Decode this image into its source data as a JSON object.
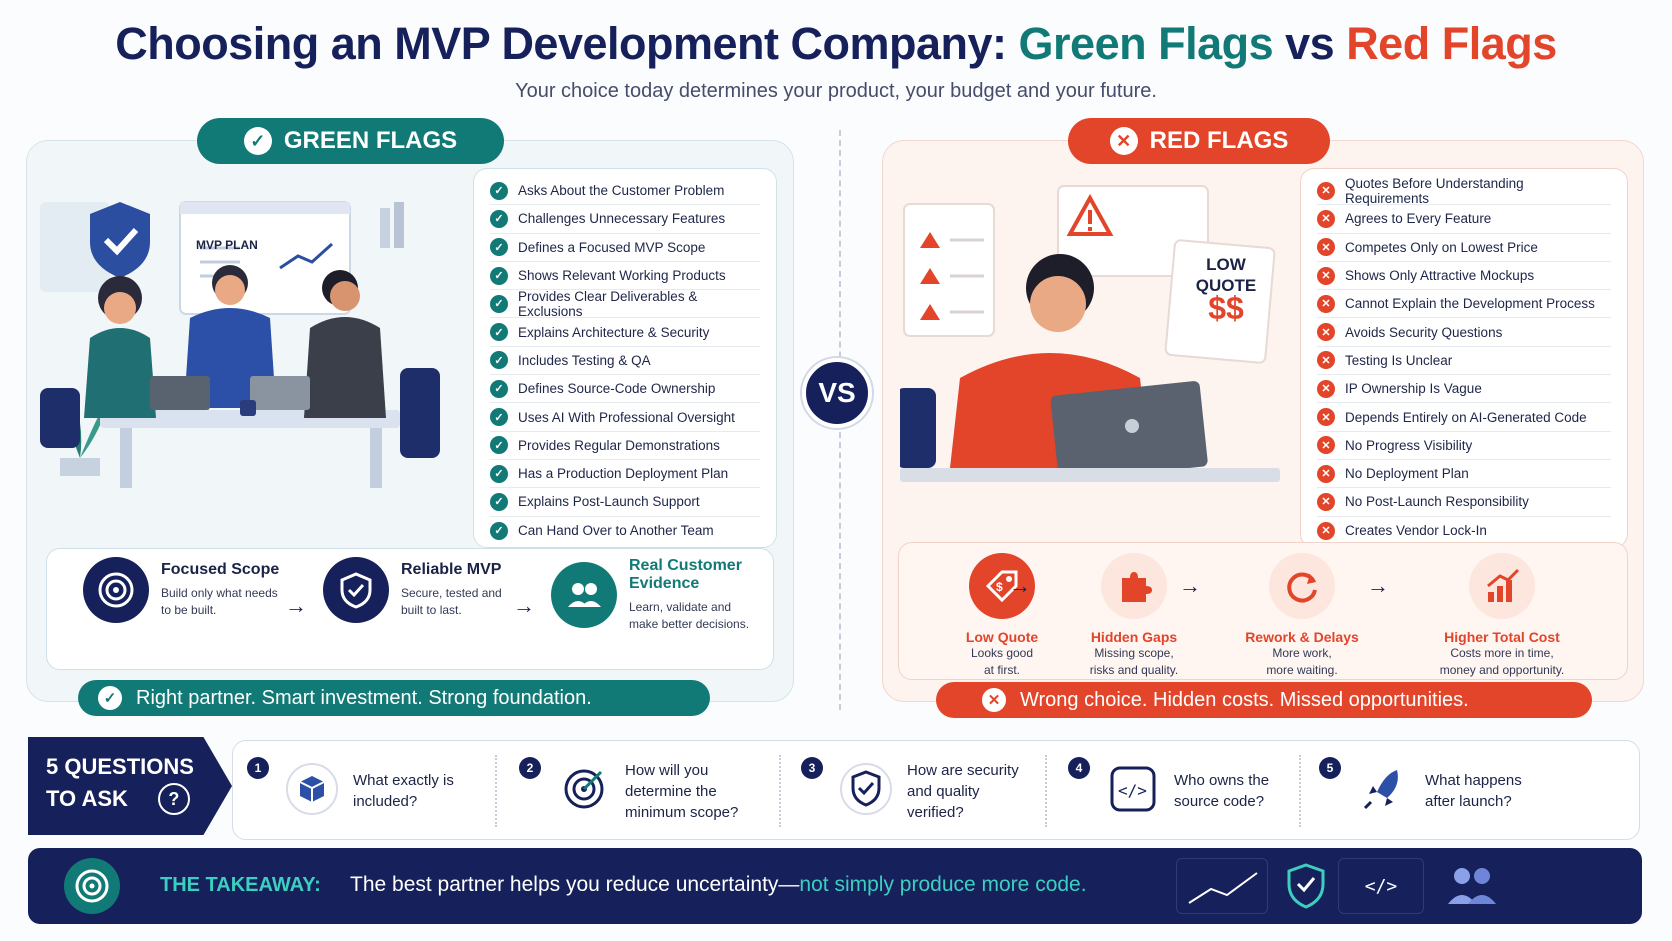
{
  "title": {
    "part1": "Choosing an MVP Development Company: ",
    "green": "Green Flags",
    "vs": " vs ",
    "red": "Red Flags"
  },
  "subtitle": "Your choice today determines your product, your budget and your future.",
  "green": {
    "heading": "GREEN FLAGS",
    "board_label": "MVP PLAN",
    "items": [
      "Asks About the Customer Problem",
      "Challenges Unnecessary Features",
      "Defines a Focused MVP Scope",
      "Shows Relevant Working Products",
      "Provides Clear Deliverables & Exclusions",
      "Explains Architecture & Security",
      "Includes Testing & QA",
      "Defines Source-Code Ownership",
      "Uses AI With Professional Oversight",
      "Provides Regular Demonstrations",
      "Has a Production Deployment Plan",
      "Explains Post-Launch Support",
      "Can Hand Over to Another Team"
    ],
    "flow": [
      {
        "title": "Focused Scope",
        "desc": "Build only what needs to be built.",
        "icon": "target-icon"
      },
      {
        "title": "Reliable MVP",
        "desc": "Secure, tested and built to last.",
        "icon": "shield-check-icon"
      },
      {
        "title": "Real Customer Evidence",
        "desc": "Learn, validate and make better decisions.",
        "icon": "users-icon"
      }
    ],
    "banner": "Right partner. Smart investment. Strong foundation."
  },
  "vs_label": "VS",
  "red": {
    "heading": "RED FLAGS",
    "sign_line1": "LOW",
    "sign_line2": "QUOTE",
    "sign_price": "$$",
    "items": [
      "Quotes Before Understanding Requirements",
      "Agrees to Every Feature",
      "Competes Only on Lowest Price",
      "Shows Only Attractive Mockups",
      "Cannot Explain the Development Process",
      "Avoids Security Questions",
      "Testing Is Unclear",
      "IP Ownership Is Vague",
      "Depends Entirely on AI-Generated Code",
      "No Progress Visibility",
      "No Deployment Plan",
      "No Post-Launch Responsibility",
      "Creates Vendor Lock-In"
    ],
    "flow": [
      {
        "title": "Low Quote",
        "desc1": "Looks good",
        "desc2": "at first.",
        "icon": "price-tag-icon"
      },
      {
        "title": "Hidden Gaps",
        "desc1": "Missing scope,",
        "desc2": "risks and quality.",
        "icon": "puzzle-icon"
      },
      {
        "title": "Rework & Delays",
        "desc1": "More work,",
        "desc2": "more waiting.",
        "icon": "refresh-icon"
      },
      {
        "title": "Higher Total Cost",
        "desc1": "Costs more in time,",
        "desc2": "money and opportunity.",
        "icon": "bar-chart-up-icon"
      }
    ],
    "banner": "Wrong choice. Hidden costs. Missed opportunities."
  },
  "questions": {
    "heading_line1": "5 QUESTIONS",
    "heading_line2": "TO ASK",
    "items": [
      {
        "num": "1",
        "text": "What exactly is included?",
        "icon": "box-icon"
      },
      {
        "num": "2",
        "text": "How will you determine the minimum scope?",
        "icon": "target-icon"
      },
      {
        "num": "3",
        "text": "How are security and quality verified?",
        "icon": "shield-icon"
      },
      {
        "num": "4",
        "text": "Who owns the source code?",
        "icon": "code-icon"
      },
      {
        "num": "5",
        "text": "What happens after launch?",
        "icon": "rocket-icon"
      }
    ]
  },
  "takeaway": {
    "label": "THE TAKEAWAY:",
    "text_main": "The best partner helps you reduce uncertainty—",
    "text_highlight": "not simply produce more code."
  },
  "colors": {
    "navy": "#16205a",
    "teal": "#127a76",
    "red": "#e2452a"
  }
}
